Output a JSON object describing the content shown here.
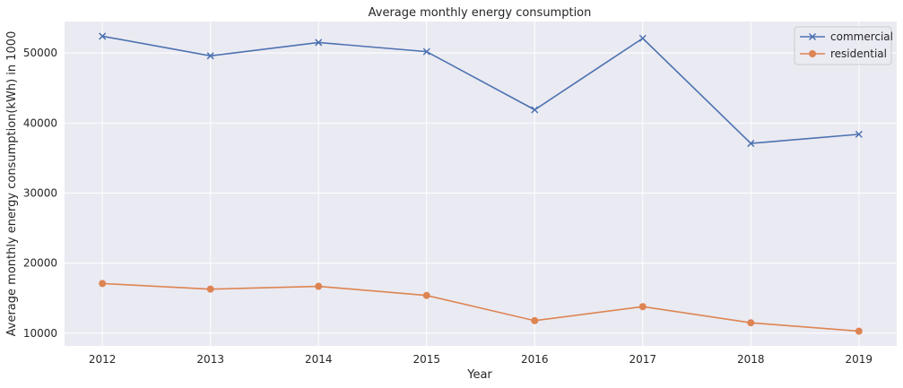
{
  "chart_data": {
    "type": "line",
    "title": "Average monthly energy consumption",
    "xlabel": "Year",
    "ylabel": "Average monthly energy consumption(kWh) in 1000",
    "x": [
      2012,
      2013,
      2014,
      2015,
      2016,
      2017,
      2018,
      2019
    ],
    "x_ticks": [
      "2012",
      "2013",
      "2014",
      "2015",
      "2016",
      "2017",
      "2018",
      "2019"
    ],
    "y_ticks": [
      10000,
      20000,
      30000,
      40000,
      50000
    ],
    "xlim": [
      2011.65,
      2019.35
    ],
    "ylim": [
      8200,
      54500
    ],
    "grid": true,
    "legend_position": "top-right",
    "background_color": "#eaeaf2",
    "grid_color": "#ffffff",
    "series": [
      {
        "name": "commercial",
        "color": "#4c72b0",
        "marker": "x",
        "values": [
          52400,
          49600,
          51500,
          50200,
          41900,
          52100,
          37100,
          38400
        ]
      },
      {
        "name": "residential",
        "color": "#dd8452",
        "marker": "o",
        "values": [
          17100,
          16300,
          16700,
          15400,
          11800,
          13800,
          11500,
          10300
        ]
      }
    ]
  }
}
